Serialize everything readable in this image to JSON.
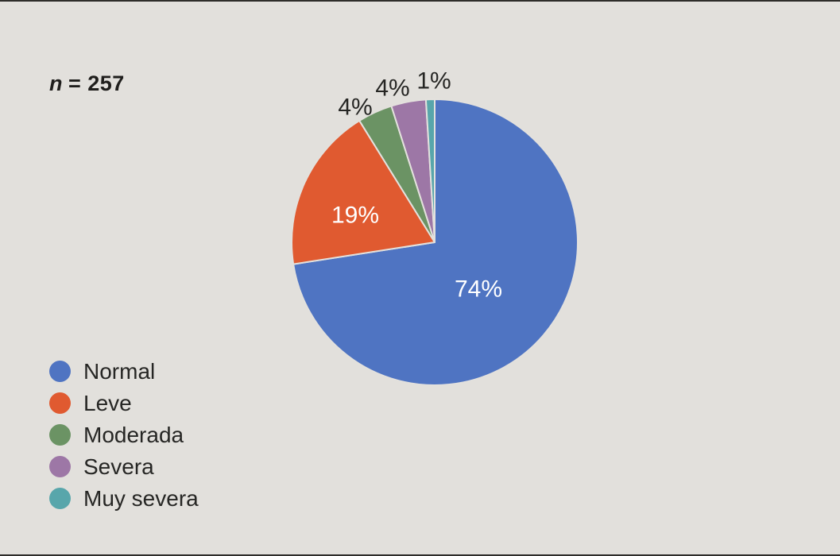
{
  "annotation": {
    "symbol": "n",
    "rest": "= 257",
    "full_text": "n = 257"
  },
  "chart_data": {
    "type": "pie",
    "title": "",
    "sample_size": 257,
    "categories": [
      "Normal",
      "Leve",
      "Moderada",
      "Severa",
      "Muy severa"
    ],
    "values": [
      74,
      19,
      4,
      4,
      1
    ],
    "labels_display": [
      "74%",
      "19%",
      "4%",
      "4%",
      "1%"
    ],
    "colors": [
      "#4f74c2",
      "#e05a30",
      "#6b9364",
      "#9d77a6",
      "#58a6ab"
    ],
    "label_text_colors": [
      "#ffffff",
      "#ffffff",
      "#262624",
      "#262624",
      "#262624"
    ],
    "start_angle_deg": 0,
    "direction": "clockwise",
    "legend_position": "bottom-left",
    "background_color": "#e2e0dc",
    "separator_color": "#e3e1dd"
  }
}
